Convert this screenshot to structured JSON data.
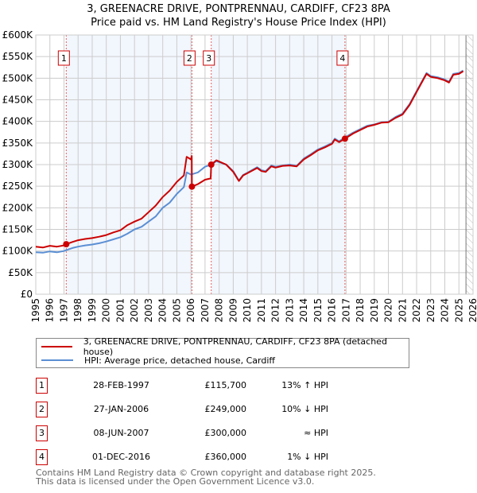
{
  "chart_data": {
    "type": "line",
    "title": "3, GREENACRE DRIVE, PONTPRENNAU, CARDIFF, CF23 8PA",
    "subtitle": "Price paid vs. HM Land Registry's House Price Index (HPI)",
    "xlim": [
      1995,
      2026
    ],
    "ylim": [
      0,
      600000
    ],
    "x_ticks": [
      "1995",
      "1996",
      "1997",
      "1998",
      "1999",
      "2000",
      "2001",
      "2002",
      "2003",
      "2004",
      "2005",
      "2006",
      "2007",
      "2008",
      "2009",
      "2010",
      "2011",
      "2012",
      "2013",
      "2014",
      "2015",
      "2016",
      "2017",
      "2018",
      "2019",
      "2020",
      "2021",
      "2022",
      "2023",
      "2024",
      "2025",
      "2026"
    ],
    "y_ticks": [
      {
        "value": 0,
        "label": "£0"
      },
      {
        "value": 50000,
        "label": "£50K"
      },
      {
        "value": 100000,
        "label": "£100K"
      },
      {
        "value": 150000,
        "label": "£150K"
      },
      {
        "value": 200000,
        "label": "£200K"
      },
      {
        "value": 250000,
        "label": "£250K"
      },
      {
        "value": 300000,
        "label": "£300K"
      },
      {
        "value": 350000,
        "label": "£350K"
      },
      {
        "value": 400000,
        "label": "£400K"
      },
      {
        "value": 450000,
        "label": "£450K"
      },
      {
        "value": 500000,
        "label": "£500K"
      },
      {
        "value": 550000,
        "label": "£550K"
      },
      {
        "value": 600000,
        "label": "£600K"
      }
    ],
    "grid": true,
    "series": [
      {
        "name": "3, GREENACRE DRIVE, PONTPRENNAU, CARDIFF, CF23 8PA (detached house)",
        "color": "#cc0000",
        "x": [
          1995,
          1995.5,
          1996,
          1996.5,
          1997,
          1997.16,
          1997.6,
          1998,
          1998.5,
          1999,
          1999.5,
          2000,
          2000.5,
          2001,
          2001.5,
          2002,
          2002.5,
          2003,
          2003.5,
          2004,
          2004.5,
          2005,
          2005.5,
          2005.7,
          2006,
          2006.06,
          2006.07,
          2006.5,
          2007,
          2007.4,
          2007.44,
          2007.8,
          2008.5,
          2009,
          2009.4,
          2009.7,
          2010,
          2010.7,
          2011,
          2011.3,
          2011.7,
          2012,
          2012.5,
          2013,
          2013.5,
          2014,
          2014.5,
          2015,
          2015.5,
          2016,
          2016.2,
          2016.5,
          2016.92,
          2017.5,
          2018,
          2018.5,
          2019,
          2019.5,
          2020,
          2020.5,
          2021,
          2021.5,
          2022,
          2022.5,
          2022.7,
          2023,
          2023.5,
          2024,
          2024.3,
          2024.6,
          2025,
          2025.3
        ],
        "y": [
          110000,
          108000,
          112000,
          110000,
          113000,
          115700,
          121000,
          125000,
          128000,
          130000,
          133000,
          137000,
          143000,
          148000,
          160000,
          168000,
          175000,
          190000,
          205000,
          225000,
          240000,
          260000,
          275000,
          318000,
          312000,
          320000,
          249000,
          255000,
          265000,
          268000,
          300000,
          310000,
          300000,
          283000,
          262000,
          275000,
          280000,
          292000,
          285000,
          283000,
          296000,
          293000,
          297000,
          298000,
          296000,
          312000,
          322000,
          333000,
          340000,
          348000,
          358000,
          352000,
          360000,
          372000,
          380000,
          388000,
          392000,
          397000,
          398000,
          408000,
          416000,
          438000,
          468000,
          498000,
          510000,
          503000,
          500000,
          495000,
          490000,
          508000,
          510000,
          516000
        ]
      },
      {
        "name": "HPI: Average price, detached house, Cardiff",
        "color": "#5b8fd4",
        "x": [
          1995,
          1995.5,
          1996,
          1996.5,
          1997,
          1997.16,
          1997.6,
          1998,
          1998.5,
          1999,
          1999.5,
          2000,
          2000.5,
          2001,
          2001.5,
          2002,
          2002.5,
          2003,
          2003.5,
          2004,
          2004.5,
          2005,
          2005.5,
          2005.7,
          2006,
          2006.5,
          2007,
          2007.44,
          2007.8,
          2008.5,
          2009,
          2009.4,
          2009.7,
          2010,
          2010.7,
          2011,
          2011.3,
          2011.7,
          2012,
          2012.5,
          2013,
          2013.5,
          2014,
          2014.5,
          2015,
          2015.5,
          2016,
          2016.2,
          2016.5,
          2016.92,
          2017.5,
          2018,
          2018.5,
          2019,
          2019.5,
          2020,
          2020.5,
          2021,
          2021.5,
          2022,
          2022.5,
          2022.7,
          2023,
          2023.5,
          2024,
          2024.3,
          2024.6,
          2025,
          2025.3
        ],
        "y": [
          97000,
          96000,
          99000,
          97000,
          100000,
          102000,
          107000,
          110000,
          113000,
          115000,
          118000,
          122000,
          127000,
          132000,
          140000,
          150000,
          156000,
          168000,
          180000,
          200000,
          212000,
          232000,
          248000,
          282000,
          277000,
          282000,
          295000,
          300000,
          308000,
          300000,
          285000,
          263000,
          276000,
          281000,
          294000,
          287000,
          285000,
          298000,
          295000,
          298000,
          300000,
          297000,
          314000,
          324000,
          335000,
          342000,
          350000,
          360000,
          354000,
          363000,
          374000,
          382000,
          390000,
          393000,
          398000,
          399000,
          410000,
          418000,
          440000,
          470000,
          500000,
          512000,
          505000,
          502000,
          497000,
          492000,
          510000,
          512000,
          518000
        ]
      }
    ],
    "transactions": [
      {
        "id": "1",
        "x": 1997.16,
        "price": 115700
      },
      {
        "id": "2",
        "x": 2006.07,
        "price": 249000
      },
      {
        "id": "3",
        "x": 2007.44,
        "price": 300000
      },
      {
        "id": "4",
        "x": 2016.92,
        "price": 360000
      }
    ],
    "shaded_periods": [
      [
        1997.16,
        2006.07
      ],
      [
        2007.44,
        2016.92
      ]
    ],
    "forecast_from": 2025.5,
    "legend_placement": "below"
  },
  "legend": {
    "property": "3, GREENACRE DRIVE, PONTPRENNAU, CARDIFF, CF23 8PA (detached house)",
    "hpi": "HPI: Average price, detached house, Cardiff"
  },
  "table": [
    {
      "num": "1",
      "date": "28-FEB-1997",
      "price": "£115,700",
      "hpi": "13% ↑ HPI"
    },
    {
      "num": "2",
      "date": "27-JAN-2006",
      "price": "£249,000",
      "hpi": "10% ↓ HPI"
    },
    {
      "num": "3",
      "date": "08-JUN-2007",
      "price": "£300,000",
      "hpi": "≈ HPI"
    },
    {
      "num": "4",
      "date": "01-DEC-2016",
      "price": "£360,000",
      "hpi": "1% ↓ HPI"
    }
  ],
  "footer": {
    "line1": "Contains HM Land Registry data © Crown copyright and database right 2025.",
    "line2": "This data is licensed under the Open Government Licence v3.0."
  }
}
